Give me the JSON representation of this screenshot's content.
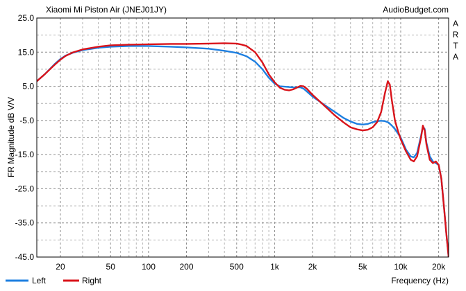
{
  "chart_data": {
    "type": "line",
    "title": "Xiaomi Mi Piston Air (JNEJ01JY)",
    "source": "AudioBudget.com",
    "side_text": "A R T A",
    "xlabel": "Frequency (Hz)",
    "ylabel": "FR Magnitude dB V/V",
    "x_scale": "log",
    "xlim": [
      13,
      24000
    ],
    "ylim": [
      -45,
      25
    ],
    "grid": true,
    "legend_position": "bottom-left",
    "x_ticks": [
      {
        "value": 20,
        "label": "20"
      },
      {
        "value": 50,
        "label": "50"
      },
      {
        "value": 100,
        "label": "100"
      },
      {
        "value": 200,
        "label": "200"
      },
      {
        "value": 500,
        "label": "500"
      },
      {
        "value": 1000,
        "label": "1k"
      },
      {
        "value": 2000,
        "label": "2k"
      },
      {
        "value": 5000,
        "label": "5k"
      },
      {
        "value": 10000,
        "label": "10k"
      },
      {
        "value": 20000,
        "label": "20k"
      }
    ],
    "y_ticks": [
      {
        "value": 25,
        "label": "25.0"
      },
      {
        "value": 15,
        "label": "15.0"
      },
      {
        "value": 5,
        "label": "5.0"
      },
      {
        "value": -5,
        "label": "-5.0"
      },
      {
        "value": -15,
        "label": "-15.0"
      },
      {
        "value": -25,
        "label": "-25.0"
      },
      {
        "value": -35,
        "label": "-35.0"
      },
      {
        "value": -45,
        "label": "-45.0"
      }
    ],
    "series": [
      {
        "name": "Left",
        "color": "#1e7fe0",
        "points": [
          [
            13,
            6.5
          ],
          [
            15,
            8.5
          ],
          [
            18,
            11.5
          ],
          [
            20,
            13.0
          ],
          [
            22,
            14.0
          ],
          [
            25,
            14.8
          ],
          [
            30,
            15.6
          ],
          [
            40,
            16.3
          ],
          [
            50,
            16.6
          ],
          [
            70,
            16.8
          ],
          [
            100,
            16.8
          ],
          [
            150,
            16.6
          ],
          [
            200,
            16.4
          ],
          [
            300,
            16.0
          ],
          [
            400,
            15.4
          ],
          [
            500,
            14.8
          ],
          [
            600,
            13.8
          ],
          [
            700,
            12.2
          ],
          [
            800,
            10.0
          ],
          [
            900,
            7.5
          ],
          [
            1000,
            5.8
          ],
          [
            1100,
            5.0
          ],
          [
            1200,
            4.9
          ],
          [
            1400,
            4.7
          ],
          [
            1600,
            4.7
          ],
          [
            1700,
            4.3
          ],
          [
            1800,
            3.5
          ],
          [
            2000,
            2.0
          ],
          [
            2500,
            -0.5
          ],
          [
            3000,
            -2.5
          ],
          [
            3500,
            -4.2
          ],
          [
            4000,
            -5.3
          ],
          [
            4500,
            -6.0
          ],
          [
            5000,
            -6.2
          ],
          [
            5500,
            -6.0
          ],
          [
            6000,
            -5.5
          ],
          [
            6500,
            -5.2
          ],
          [
            7000,
            -5.1
          ],
          [
            7500,
            -5.2
          ],
          [
            8000,
            -5.6
          ],
          [
            8500,
            -6.5
          ],
          [
            9000,
            -7.5
          ],
          [
            10000,
            -10.0
          ],
          [
            11000,
            -13.5
          ],
          [
            12000,
            -15.5
          ],
          [
            12700,
            -15.8
          ],
          [
            13500,
            -14.5
          ],
          [
            14500,
            -9.5
          ],
          [
            15000,
            -6.8
          ],
          [
            15500,
            -7.5
          ],
          [
            16000,
            -11.5
          ],
          [
            17000,
            -15.5
          ],
          [
            18000,
            -17.0
          ],
          [
            19000,
            -17.5
          ],
          [
            20000,
            -18.0
          ],
          [
            21000,
            -22.0
          ],
          [
            22000,
            -30.0
          ],
          [
            23000,
            -38.0
          ],
          [
            24000,
            -45.0
          ]
        ]
      },
      {
        "name": "Right",
        "color": "#d9131a",
        "points": [
          [
            13,
            6.5
          ],
          [
            15,
            8.5
          ],
          [
            18,
            11.3
          ],
          [
            20,
            12.8
          ],
          [
            22,
            13.9
          ],
          [
            25,
            14.9
          ],
          [
            30,
            15.8
          ],
          [
            40,
            16.6
          ],
          [
            50,
            17.0
          ],
          [
            70,
            17.2
          ],
          [
            100,
            17.3
          ],
          [
            150,
            17.4
          ],
          [
            200,
            17.4
          ],
          [
            300,
            17.5
          ],
          [
            400,
            17.6
          ],
          [
            500,
            17.5
          ],
          [
            550,
            17.2
          ],
          [
            600,
            16.8
          ],
          [
            700,
            15.0
          ],
          [
            800,
            12.0
          ],
          [
            900,
            8.5
          ],
          [
            1000,
            6.2
          ],
          [
            1100,
            4.6
          ],
          [
            1200,
            4.0
          ],
          [
            1300,
            3.8
          ],
          [
            1400,
            4.1
          ],
          [
            1600,
            5.1
          ],
          [
            1700,
            5.0
          ],
          [
            1800,
            4.3
          ],
          [
            2000,
            2.5
          ],
          [
            2500,
            -0.8
          ],
          [
            3000,
            -3.5
          ],
          [
            3500,
            -5.5
          ],
          [
            4000,
            -7.0
          ],
          [
            4500,
            -7.6
          ],
          [
            5000,
            -7.9
          ],
          [
            5500,
            -7.7
          ],
          [
            6000,
            -7.0
          ],
          [
            6500,
            -5.5
          ],
          [
            7000,
            -2.5
          ],
          [
            7500,
            3.0
          ],
          [
            7900,
            6.5
          ],
          [
            8200,
            5.5
          ],
          [
            8500,
            1.0
          ],
          [
            9000,
            -5.0
          ],
          [
            9500,
            -8.0
          ],
          [
            10000,
            -10.5
          ],
          [
            11000,
            -14.0
          ],
          [
            12000,
            -16.5
          ],
          [
            12700,
            -17.0
          ],
          [
            13500,
            -15.5
          ],
          [
            14500,
            -10.0
          ],
          [
            15000,
            -6.5
          ],
          [
            15500,
            -8.0
          ],
          [
            16000,
            -12.0
          ],
          [
            17000,
            -16.5
          ],
          [
            18000,
            -17.5
          ],
          [
            19000,
            -17.0
          ],
          [
            20000,
            -18.0
          ],
          [
            21000,
            -22.0
          ],
          [
            22000,
            -30.0
          ],
          [
            23000,
            -38.0
          ],
          [
            24000,
            -45.0
          ]
        ]
      }
    ]
  }
}
